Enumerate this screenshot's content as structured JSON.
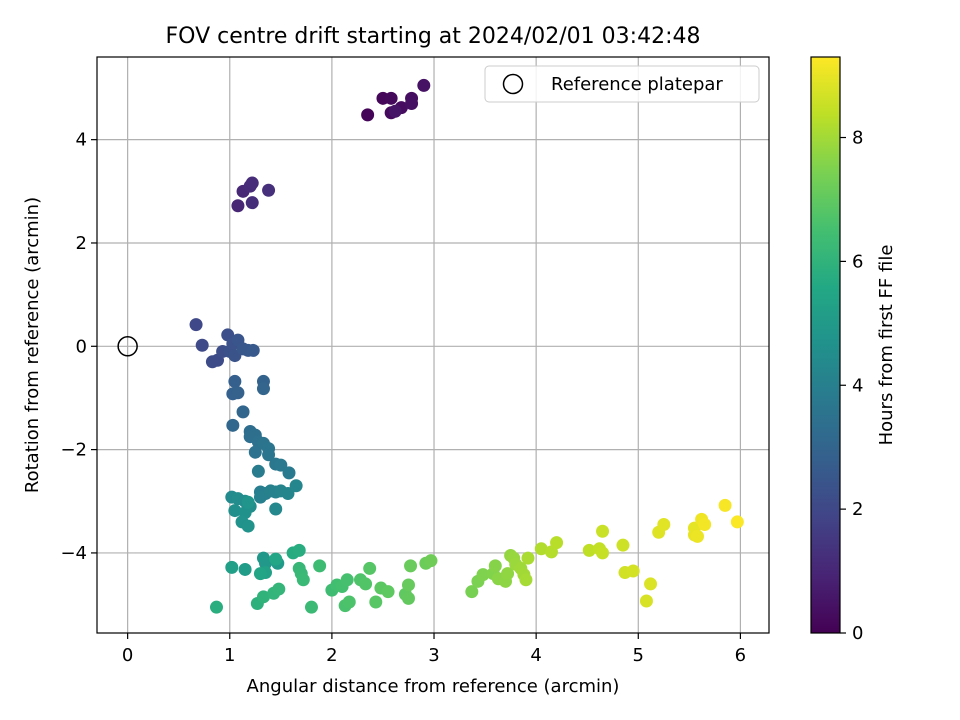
{
  "chart_data": {
    "type": "scatter",
    "title": "FOV centre drift starting at 2024/02/01 03:42:48",
    "xlabel": "Angular distance from reference (arcmin)",
    "ylabel": "Rotation from reference (arcmin)",
    "xlim": [
      -0.3,
      6.28
    ],
    "ylim": [
      -5.55,
      5.6
    ],
    "xticks": [
      0,
      1,
      2,
      3,
      4,
      5,
      6
    ],
    "yticks": [
      -4,
      -2,
      0,
      2,
      4
    ],
    "xtick_labels": [
      "0",
      "1",
      "2",
      "3",
      "4",
      "5",
      "6"
    ],
    "ytick_labels": [
      "−4",
      "−2",
      "0",
      "2",
      "4"
    ],
    "grid": true,
    "legend": {
      "position": "top-right",
      "entries": [
        "Reference platepar"
      ]
    },
    "reference_point": {
      "x": 0,
      "y": 0,
      "label": "Reference platepar"
    },
    "colorbar": {
      "label": "Hours from first FF file",
      "colormap": "viridis",
      "range": [
        0,
        9.3
      ],
      "ticks": [
        0,
        2,
        4,
        6,
        8
      ],
      "tick_labels": [
        "0",
        "2",
        "4",
        "6",
        "8"
      ]
    },
    "series": [
      {
        "color_variable": "hours",
        "points": [
          [
            2.35,
            4.48,
            0.1
          ],
          [
            2.5,
            4.8,
            0.15
          ],
          [
            2.58,
            4.8,
            0.2
          ],
          [
            2.58,
            4.52,
            0.25
          ],
          [
            2.68,
            4.62,
            0.3
          ],
          [
            2.78,
            4.8,
            0.35
          ],
          [
            2.78,
            4.7,
            0.4
          ],
          [
            2.9,
            5.05,
            0.45
          ],
          [
            2.62,
            4.55,
            0.5
          ],
          [
            1.08,
            2.72,
            1.0
          ],
          [
            1.13,
            3.0,
            1.05
          ],
          [
            1.2,
            3.1,
            1.1
          ],
          [
            1.22,
            3.16,
            1.15
          ],
          [
            1.22,
            2.78,
            1.2
          ],
          [
            1.38,
            3.02,
            1.25
          ],
          [
            0.67,
            0.42,
            2.0
          ],
          [
            0.73,
            0.02,
            2.05
          ],
          [
            0.83,
            -0.3,
            2.1
          ],
          [
            0.88,
            -0.27,
            2.15
          ],
          [
            0.93,
            -0.1,
            2.2
          ],
          [
            0.98,
            0.22,
            2.25
          ],
          [
            1.0,
            -0.1,
            2.3
          ],
          [
            1.03,
            0.05,
            2.35
          ],
          [
            1.05,
            -0.18,
            2.4
          ],
          [
            1.08,
            0.12,
            2.45
          ],
          [
            1.13,
            -0.05,
            2.5
          ],
          [
            1.18,
            -0.08,
            2.55
          ],
          [
            1.23,
            -0.08,
            2.6
          ],
          [
            1.05,
            -0.68,
            2.8
          ],
          [
            1.03,
            -0.92,
            2.85
          ],
          [
            1.08,
            -0.9,
            2.9
          ],
          [
            1.33,
            -0.68,
            2.95
          ],
          [
            1.33,
            -0.82,
            3.0
          ],
          [
            1.13,
            -1.27,
            3.05
          ],
          [
            1.03,
            -1.53,
            3.1
          ],
          [
            1.2,
            -1.65,
            3.3
          ],
          [
            1.2,
            -1.75,
            3.35
          ],
          [
            1.25,
            -1.72,
            3.4
          ],
          [
            1.28,
            -1.85,
            3.45
          ],
          [
            1.25,
            -2.05,
            3.5
          ],
          [
            1.33,
            -1.88,
            3.55
          ],
          [
            1.38,
            -1.98,
            3.6
          ],
          [
            1.38,
            -2.1,
            3.65
          ],
          [
            1.45,
            -2.28,
            3.7
          ],
          [
            1.5,
            -2.3,
            3.75
          ],
          [
            1.58,
            -2.45,
            3.8
          ],
          [
            1.28,
            -2.42,
            3.85
          ],
          [
            1.3,
            -2.82,
            3.9
          ],
          [
            1.35,
            -2.85,
            3.95
          ],
          [
            1.3,
            -2.92,
            4.0
          ],
          [
            1.4,
            -2.8,
            4.05
          ],
          [
            1.45,
            -2.82,
            4.1
          ],
          [
            1.5,
            -2.8,
            4.15
          ],
          [
            1.57,
            -2.85,
            4.2
          ],
          [
            1.65,
            -2.7,
            4.25
          ],
          [
            1.45,
            -3.15,
            4.3
          ],
          [
            1.02,
            -2.92,
            4.4
          ],
          [
            1.08,
            -2.95,
            4.45
          ],
          [
            1.15,
            -3.0,
            4.5
          ],
          [
            1.2,
            -3.1,
            4.55
          ],
          [
            1.05,
            -3.18,
            4.6
          ],
          [
            1.15,
            -3.22,
            4.65
          ],
          [
            1.12,
            -3.4,
            4.7
          ],
          [
            1.18,
            -3.48,
            4.75
          ],
          [
            1.18,
            -3.02,
            4.8
          ],
          [
            1.33,
            -4.1,
            4.9
          ],
          [
            1.35,
            -4.2,
            4.95
          ],
          [
            1.47,
            -4.2,
            5.0
          ],
          [
            1.15,
            -4.32,
            5.1
          ],
          [
            1.02,
            -4.28,
            5.2
          ],
          [
            1.35,
            -4.38,
            5.3
          ],
          [
            1.3,
            -4.4,
            5.4
          ],
          [
            1.45,
            -4.12,
            5.5
          ],
          [
            1.62,
            -4.0,
            5.7
          ],
          [
            1.68,
            -3.95,
            5.75
          ],
          [
            0.87,
            -5.05,
            5.8
          ],
          [
            1.27,
            -4.98,
            5.9
          ],
          [
            1.33,
            -4.85,
            6.0
          ],
          [
            1.43,
            -4.78,
            6.05
          ],
          [
            1.48,
            -4.7,
            6.1
          ],
          [
            1.68,
            -4.3,
            6.15
          ],
          [
            1.7,
            -4.4,
            6.2
          ],
          [
            1.72,
            -4.52,
            6.25
          ],
          [
            1.8,
            -5.05,
            6.3
          ],
          [
            1.88,
            -4.25,
            6.35
          ],
          [
            2.0,
            -4.72,
            6.4
          ],
          [
            2.05,
            -4.62,
            6.45
          ],
          [
            2.1,
            -4.65,
            6.5
          ],
          [
            2.15,
            -4.52,
            6.55
          ],
          [
            2.13,
            -5.02,
            6.6
          ],
          [
            2.17,
            -4.95,
            6.65
          ],
          [
            2.28,
            -4.52,
            6.7
          ],
          [
            2.33,
            -4.6,
            6.75
          ],
          [
            2.37,
            -4.3,
            6.8
          ],
          [
            2.43,
            -4.95,
            6.85
          ],
          [
            2.48,
            -4.68,
            6.9
          ],
          [
            2.55,
            -4.75,
            6.95
          ],
          [
            2.72,
            -4.8,
            7.0
          ],
          [
            2.75,
            -4.88,
            7.05
          ],
          [
            2.75,
            -4.62,
            7.1
          ],
          [
            2.77,
            -4.25,
            7.15
          ],
          [
            2.92,
            -4.2,
            7.2
          ],
          [
            2.97,
            -4.15,
            7.25
          ],
          [
            3.37,
            -4.75,
            7.4
          ],
          [
            3.43,
            -4.55,
            7.45
          ],
          [
            3.48,
            -4.42,
            7.5
          ],
          [
            3.58,
            -4.4,
            7.55
          ],
          [
            3.6,
            -4.25,
            7.6
          ],
          [
            3.63,
            -4.5,
            7.65
          ],
          [
            3.7,
            -4.55,
            7.7
          ],
          [
            3.72,
            -4.4,
            7.75
          ],
          [
            3.75,
            -4.05,
            7.8
          ],
          [
            3.78,
            -4.1,
            7.85
          ],
          [
            3.8,
            -4.22,
            7.9
          ],
          [
            3.85,
            -4.3,
            7.95
          ],
          [
            3.88,
            -4.42,
            8.0
          ],
          [
            3.9,
            -4.52,
            8.05
          ],
          [
            3.92,
            -4.1,
            8.1
          ],
          [
            4.05,
            -3.92,
            8.2
          ],
          [
            4.15,
            -3.98,
            8.25
          ],
          [
            4.2,
            -3.8,
            8.3
          ],
          [
            4.52,
            -3.95,
            8.4
          ],
          [
            4.62,
            -3.92,
            8.45
          ],
          [
            4.65,
            -4.0,
            8.5
          ],
          [
            4.65,
            -3.58,
            8.55
          ],
          [
            4.85,
            -3.85,
            8.6
          ],
          [
            4.87,
            -4.38,
            8.65
          ],
          [
            4.95,
            -4.35,
            8.7
          ],
          [
            5.08,
            -4.93,
            8.75
          ],
          [
            5.12,
            -4.6,
            8.8
          ],
          [
            5.2,
            -3.6,
            8.85
          ],
          [
            5.25,
            -3.45,
            8.9
          ],
          [
            5.55,
            -3.52,
            8.95
          ],
          [
            5.55,
            -3.65,
            9.0
          ],
          [
            5.58,
            -3.68,
            9.05
          ],
          [
            5.62,
            -3.35,
            9.1
          ],
          [
            5.65,
            -3.45,
            9.15
          ],
          [
            5.85,
            -3.08,
            9.2
          ],
          [
            5.97,
            -3.4,
            9.25
          ]
        ]
      }
    ]
  }
}
